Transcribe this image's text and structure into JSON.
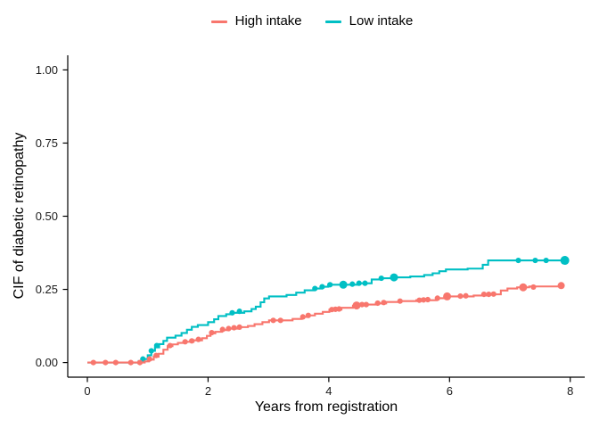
{
  "figure": {
    "background": "#FFFFFF"
  },
  "legend": {
    "items": [
      {
        "label": "High intake",
        "color": "#F8766D"
      },
      {
        "label": "Low intake",
        "color": "#00BFC4"
      }
    ]
  },
  "chart_data": {
    "type": "line",
    "subtype": "step-function-cumulative-incidence",
    "title": "",
    "xlabel": "Years from registration",
    "ylabel": "CIF of diabetic retinopathy",
    "xlim": [
      -0.325,
      8.24
    ],
    "ylim": [
      -0.05,
      1.05
    ],
    "x_ticks": [
      0,
      2,
      4,
      6,
      8
    ],
    "y_ticks": [
      0,
      0.25,
      0.5,
      0.75,
      1.0
    ],
    "x_tick_labels": [
      "0",
      "2",
      "4",
      "6",
      "8"
    ],
    "y_tick_labels": [
      "0.00",
      "0.25",
      "0.50",
      "0.75",
      "1.00"
    ],
    "grid": false,
    "legend_position": "top-center",
    "axis_color": "#000000",
    "series": [
      {
        "name": "Low intake",
        "color": "#00BFC4",
        "steps": [
          [
            0,
            0
          ],
          [
            0.85,
            0.005
          ],
          [
            0.92,
            0.012
          ],
          [
            1.0,
            0.025
          ],
          [
            1.06,
            0.04
          ],
          [
            1.12,
            0.052
          ],
          [
            1.19,
            0.063
          ],
          [
            1.26,
            0.074
          ],
          [
            1.32,
            0.085
          ],
          [
            1.46,
            0.092
          ],
          [
            1.56,
            0.101
          ],
          [
            1.65,
            0.112
          ],
          [
            1.73,
            0.122
          ],
          [
            1.83,
            0.128
          ],
          [
            2.0,
            0.138
          ],
          [
            2.1,
            0.148
          ],
          [
            2.17,
            0.159
          ],
          [
            2.3,
            0.165
          ],
          [
            2.37,
            0.17
          ],
          [
            2.6,
            0.175
          ],
          [
            2.72,
            0.183
          ],
          [
            2.79,
            0.191
          ],
          [
            2.87,
            0.206
          ],
          [
            2.93,
            0.219
          ],
          [
            3.01,
            0.226
          ],
          [
            3.3,
            0.231
          ],
          [
            3.46,
            0.239
          ],
          [
            3.6,
            0.247
          ],
          [
            3.76,
            0.253
          ],
          [
            3.88,
            0.259
          ],
          [
            3.99,
            0.266
          ],
          [
            4.5,
            0.271
          ],
          [
            4.71,
            0.284
          ],
          [
            4.86,
            0.288
          ],
          [
            5.06,
            0.291
          ],
          [
            5.35,
            0.294
          ],
          [
            5.58,
            0.299
          ],
          [
            5.72,
            0.305
          ],
          [
            5.83,
            0.312
          ],
          [
            5.94,
            0.318
          ],
          [
            6.3,
            0.321
          ],
          [
            6.55,
            0.334
          ],
          [
            6.64,
            0.349
          ],
          [
            7.91,
            0.349
          ]
        ],
        "censor_marks": [
          [
            0.92,
            0.012
          ],
          [
            1.06,
            0.04
          ],
          [
            1.15,
            0.058
          ],
          [
            2.4,
            0.17
          ],
          [
            2.52,
            0.175
          ],
          [
            3.77,
            0.253
          ],
          [
            3.89,
            0.259
          ],
          [
            4.02,
            0.266
          ],
          [
            4.24,
            0.266,
            4.5
          ],
          [
            4.39,
            0.268
          ],
          [
            4.5,
            0.271
          ],
          [
            4.6,
            0.271
          ],
          [
            4.87,
            0.288
          ],
          [
            5.08,
            0.291,
            4.5
          ],
          [
            7.14,
            0.349
          ],
          [
            7.42,
            0.349
          ],
          [
            7.6,
            0.349
          ],
          [
            7.91,
            0.349,
            5
          ]
        ]
      },
      {
        "name": "High intake",
        "color": "#F8766D",
        "steps": [
          [
            0,
            0
          ],
          [
            0.95,
            0.004
          ],
          [
            1.02,
            0.01
          ],
          [
            1.1,
            0.02
          ],
          [
            1.18,
            0.03
          ],
          [
            1.26,
            0.044
          ],
          [
            1.33,
            0.056
          ],
          [
            1.41,
            0.062
          ],
          [
            1.5,
            0.067
          ],
          [
            1.59,
            0.071
          ],
          [
            1.76,
            0.076
          ],
          [
            1.9,
            0.083
          ],
          [
            1.98,
            0.091
          ],
          [
            2.04,
            0.1
          ],
          [
            2.12,
            0.105
          ],
          [
            2.23,
            0.111
          ],
          [
            2.34,
            0.116
          ],
          [
            2.51,
            0.121
          ],
          [
            2.66,
            0.125
          ],
          [
            2.77,
            0.131
          ],
          [
            2.9,
            0.138
          ],
          [
            3.01,
            0.144
          ],
          [
            3.4,
            0.149
          ],
          [
            3.55,
            0.156
          ],
          [
            3.66,
            0.161
          ],
          [
            3.77,
            0.167
          ],
          [
            3.9,
            0.173
          ],
          [
            4.01,
            0.181
          ],
          [
            4.21,
            0.187
          ],
          [
            4.4,
            0.194
          ],
          [
            4.56,
            0.198
          ],
          [
            4.78,
            0.202
          ],
          [
            4.95,
            0.207
          ],
          [
            5.2,
            0.21
          ],
          [
            5.45,
            0.213
          ],
          [
            5.79,
            0.22
          ],
          [
            5.95,
            0.226
          ],
          [
            6.4,
            0.229
          ],
          [
            6.6,
            0.233
          ],
          [
            6.85,
            0.246
          ],
          [
            6.96,
            0.253
          ],
          [
            7.12,
            0.257
          ],
          [
            7.32,
            0.26
          ],
          [
            7.85,
            0.263
          ]
        ],
        "censor_marks": [
          [
            0.1,
            0
          ],
          [
            0.3,
            0
          ],
          [
            0.47,
            0
          ],
          [
            0.72,
            0
          ],
          [
            0.87,
            0
          ],
          [
            1.03,
            0.012
          ],
          [
            1.14,
            0.024
          ],
          [
            1.37,
            0.058
          ],
          [
            1.62,
            0.071
          ],
          [
            1.73,
            0.074
          ],
          [
            1.84,
            0.079
          ],
          [
            2.06,
            0.102
          ],
          [
            2.24,
            0.113
          ],
          [
            2.34,
            0.116
          ],
          [
            2.43,
            0.119
          ],
          [
            2.52,
            0.121
          ],
          [
            3.08,
            0.144
          ],
          [
            3.2,
            0.144
          ],
          [
            3.57,
            0.156
          ],
          [
            3.66,
            0.161
          ],
          [
            4.05,
            0.181
          ],
          [
            4.11,
            0.182
          ],
          [
            4.17,
            0.183
          ],
          [
            4.46,
            0.195,
            4.5
          ],
          [
            4.55,
            0.198
          ],
          [
            4.62,
            0.198
          ],
          [
            4.81,
            0.203
          ],
          [
            4.91,
            0.205
          ],
          [
            5.18,
            0.21
          ],
          [
            5.5,
            0.213
          ],
          [
            5.57,
            0.214
          ],
          [
            5.64,
            0.215
          ],
          [
            5.8,
            0.22
          ],
          [
            5.96,
            0.226,
            4.5
          ],
          [
            6.18,
            0.227
          ],
          [
            6.27,
            0.228
          ],
          [
            6.57,
            0.233
          ],
          [
            6.65,
            0.233
          ],
          [
            6.73,
            0.234
          ],
          [
            7.22,
            0.257,
            4.5
          ],
          [
            7.39,
            0.258
          ],
          [
            7.85,
            0.263,
            4
          ]
        ]
      }
    ]
  }
}
